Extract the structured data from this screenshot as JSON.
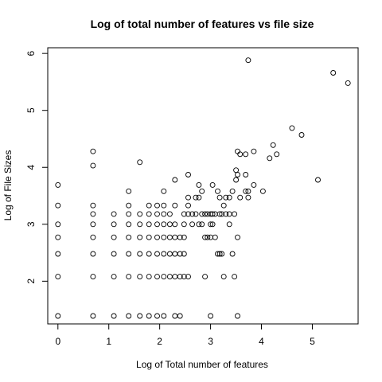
{
  "chart_data": {
    "type": "scatter",
    "title": "Log of total number of features vs file size",
    "xlabel": "Log of Total number of features",
    "ylabel": "Log of File Sizes",
    "xlim": [
      -0.2,
      5.9
    ],
    "ylim": [
      1.25,
      6.1
    ],
    "xticks": [
      0,
      1,
      2,
      3,
      4,
      5
    ],
    "yticks": [
      2,
      3,
      4,
      5,
      6
    ],
    "grid": false,
    "legend": "none",
    "marker": "open-circle",
    "series": [
      {
        "points": [
          [
            0,
            1.39
          ],
          [
            0,
            2.08
          ],
          [
            0,
            2.48
          ],
          [
            0,
            2.77
          ],
          [
            0,
            3.0
          ],
          [
            0,
            3.33
          ],
          [
            0,
            3.69
          ],
          [
            0.69,
            1.39
          ],
          [
            0.69,
            2.08
          ],
          [
            0.69,
            2.48
          ],
          [
            0.69,
            2.77
          ],
          [
            0.69,
            3.0
          ],
          [
            0.69,
            3.18
          ],
          [
            0.69,
            3.33
          ],
          [
            0.69,
            4.03
          ],
          [
            0.69,
            4.28
          ],
          [
            1.1,
            1.39
          ],
          [
            1.1,
            2.08
          ],
          [
            1.1,
            2.48
          ],
          [
            1.1,
            2.77
          ],
          [
            1.1,
            3.0
          ],
          [
            1.1,
            3.18
          ],
          [
            1.39,
            1.39
          ],
          [
            1.39,
            2.08
          ],
          [
            1.39,
            2.48
          ],
          [
            1.39,
            2.77
          ],
          [
            1.39,
            3.0
          ],
          [
            1.39,
            3.18
          ],
          [
            1.39,
            3.33
          ],
          [
            1.39,
            3.58
          ],
          [
            1.61,
            1.39
          ],
          [
            1.61,
            2.08
          ],
          [
            1.61,
            2.48
          ],
          [
            1.61,
            2.77
          ],
          [
            1.61,
            3.0
          ],
          [
            1.61,
            3.18
          ],
          [
            1.61,
            4.09
          ],
          [
            1.79,
            1.39
          ],
          [
            1.79,
            2.08
          ],
          [
            1.79,
            2.48
          ],
          [
            1.79,
            2.77
          ],
          [
            1.79,
            3.0
          ],
          [
            1.79,
            3.18
          ],
          [
            1.79,
            3.33
          ],
          [
            1.95,
            1.39
          ],
          [
            1.95,
            2.08
          ],
          [
            1.95,
            2.48
          ],
          [
            1.95,
            2.77
          ],
          [
            1.95,
            3.0
          ],
          [
            1.95,
            3.18
          ],
          [
            1.95,
            3.33
          ],
          [
            2.08,
            1.39
          ],
          [
            2.08,
            2.08
          ],
          [
            2.08,
            2.48
          ],
          [
            2.08,
            2.77
          ],
          [
            2.08,
            3.0
          ],
          [
            2.08,
            3.18
          ],
          [
            2.08,
            3.33
          ],
          [
            2.08,
            3.58
          ],
          [
            2.2,
            2.08
          ],
          [
            2.2,
            2.48
          ],
          [
            2.2,
            2.77
          ],
          [
            2.2,
            3.0
          ],
          [
            2.2,
            3.18
          ],
          [
            2.3,
            1.39
          ],
          [
            2.3,
            2.08
          ],
          [
            2.3,
            2.48
          ],
          [
            2.3,
            2.77
          ],
          [
            2.3,
            3.0
          ],
          [
            2.3,
            3.33
          ],
          [
            2.3,
            3.78
          ],
          [
            2.4,
            1.39
          ],
          [
            2.4,
            2.08
          ],
          [
            2.4,
            2.48
          ],
          [
            2.4,
            2.77
          ],
          [
            2.48,
            2.08
          ],
          [
            2.48,
            2.48
          ],
          [
            2.48,
            2.77
          ],
          [
            2.48,
            3.0
          ],
          [
            2.48,
            3.18
          ],
          [
            2.56,
            2.08
          ],
          [
            2.56,
            3.18
          ],
          [
            2.56,
            3.33
          ],
          [
            2.56,
            3.47
          ],
          [
            2.56,
            3.87
          ],
          [
            2.64,
            3.0
          ],
          [
            2.64,
            3.18
          ],
          [
            2.71,
            3.18
          ],
          [
            2.71,
            3.47
          ],
          [
            2.77,
            3.0
          ],
          [
            2.77,
            3.47
          ],
          [
            2.77,
            3.69
          ],
          [
            2.83,
            3.0
          ],
          [
            2.83,
            3.18
          ],
          [
            2.83,
            3.58
          ],
          [
            2.89,
            2.08
          ],
          [
            2.89,
            2.77
          ],
          [
            2.89,
            3.18
          ],
          [
            2.94,
            2.77
          ],
          [
            2.94,
            3.18
          ],
          [
            3.0,
            1.39
          ],
          [
            3.0,
            2.77
          ],
          [
            3.0,
            3.0
          ],
          [
            3.0,
            3.18
          ],
          [
            3.04,
            3.0
          ],
          [
            3.04,
            3.18
          ],
          [
            3.04,
            3.69
          ],
          [
            3.09,
            2.77
          ],
          [
            3.09,
            3.18
          ],
          [
            3.14,
            2.48
          ],
          [
            3.14,
            3.58
          ],
          [
            3.18,
            2.48
          ],
          [
            3.18,
            3.18
          ],
          [
            3.18,
            3.47
          ],
          [
            3.22,
            2.48
          ],
          [
            3.22,
            3.18
          ],
          [
            3.26,
            2.08
          ],
          [
            3.26,
            3.33
          ],
          [
            3.3,
            3.18
          ],
          [
            3.3,
            3.47
          ],
          [
            3.37,
            3.0
          ],
          [
            3.37,
            3.18
          ],
          [
            3.37,
            3.47
          ],
          [
            3.43,
            2.48
          ],
          [
            3.43,
            3.58
          ],
          [
            3.47,
            2.08
          ],
          [
            3.47,
            3.18
          ],
          [
            3.5,
            3.78
          ],
          [
            3.5,
            3.95
          ],
          [
            3.53,
            1.39
          ],
          [
            3.53,
            2.77
          ],
          [
            3.53,
            3.87
          ],
          [
            3.53,
            4.28
          ],
          [
            3.58,
            3.47
          ],
          [
            3.58,
            4.23
          ],
          [
            3.69,
            3.58
          ],
          [
            3.69,
            3.87
          ],
          [
            3.69,
            4.23
          ],
          [
            3.74,
            3.47
          ],
          [
            3.74,
            3.58
          ],
          [
            3.74,
            5.88
          ],
          [
            3.85,
            3.69
          ],
          [
            3.85,
            4.28
          ],
          [
            4.03,
            3.58
          ],
          [
            4.16,
            4.16
          ],
          [
            4.23,
            4.39
          ],
          [
            4.3,
            4.23
          ],
          [
            4.6,
            4.69
          ],
          [
            4.79,
            4.57
          ],
          [
            5.11,
            3.78
          ],
          [
            5.41,
            5.66
          ],
          [
            5.7,
            5.48
          ]
        ]
      }
    ]
  }
}
